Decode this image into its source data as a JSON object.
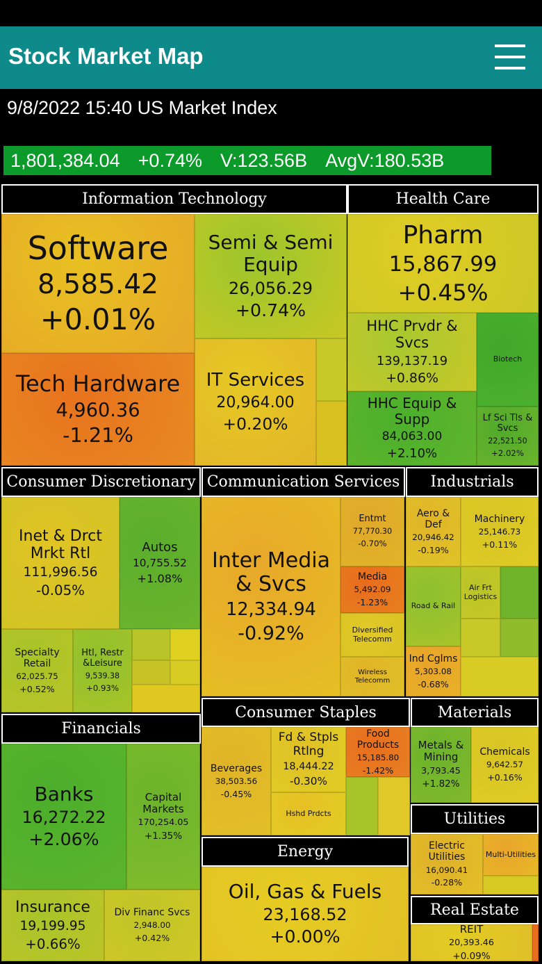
{
  "header": {
    "title": "Stock Market Map"
  },
  "index": {
    "title": "9/8/2022 15:40 US Market Index",
    "value": "1,801,384.04",
    "change": "+0.74%",
    "volume": "V:123.56B",
    "avg_volume": "AvgV:180.53B"
  },
  "sectors": [
    {
      "name": "Information Technology",
      "industries": [
        {
          "label": "Software",
          "value": "8,585.42",
          "change": "+0.01%"
        },
        {
          "label": "Semi & Semi Equip",
          "value": "26,056.29",
          "change": "+0.74%"
        },
        {
          "label": "Tech Hardware",
          "value": "4,960.36",
          "change": "-1.21%"
        },
        {
          "label": "IT Services",
          "value": "20,964.00",
          "change": "+0.20%"
        }
      ]
    },
    {
      "name": "Health Care",
      "industries": [
        {
          "label": "Pharm",
          "value": "15,867.99",
          "change": "+0.45%"
        },
        {
          "label": "HHC Prvdr & Svcs",
          "value": "139,137.19",
          "change": "+0.86%"
        },
        {
          "label": "HHC Equip & Supp",
          "value": "84,063.00",
          "change": "+2.10%"
        },
        {
          "label": "Biotech"
        },
        {
          "label": "Lf Sci Tls & Svcs",
          "value": "22,521.50",
          "change": "+2.02%"
        }
      ]
    },
    {
      "name": "Consumer Discretionary",
      "industries": [
        {
          "label": "Inet & Drct Mrkt Rtl",
          "value": "111,996.56",
          "change": "-0.05%"
        },
        {
          "label": "Autos",
          "value": "10,755.52",
          "change": "+1.08%"
        },
        {
          "label": "Specialty Retail",
          "value": "62,025.75",
          "change": "+0.52%"
        },
        {
          "label": "Htl, Restr &Leisure",
          "value": "9,539.38",
          "change": "+0.93%"
        }
      ]
    },
    {
      "name": "Communication Services",
      "industries": [
        {
          "label": "Inter Media & Svcs",
          "value": "12,334.94",
          "change": "-0.92%"
        },
        {
          "label": "Entmt",
          "value": "77,770.30",
          "change": "-0.70%"
        },
        {
          "label": "Media",
          "value": "5,492.09",
          "change": "-1.23%"
        },
        {
          "label": "Diversified Telecomm"
        },
        {
          "label": "Wireless Telecomm"
        }
      ]
    },
    {
      "name": "Industrials",
      "industries": [
        {
          "label": "Aero & Def",
          "value": "20,946.42",
          "change": "-0.19%"
        },
        {
          "label": "Machinery",
          "value": "25,146.73",
          "change": "+0.11%"
        },
        {
          "label": "Road & Rail"
        },
        {
          "label": "Air Frt Logistics"
        },
        {
          "label": "Ind Cglms",
          "value": "5,303.08",
          "change": "-0.68%"
        }
      ]
    },
    {
      "name": "Consumer Staples",
      "industries": [
        {
          "label": "Beverages",
          "value": "38,503.56",
          "change": "-0.45%"
        },
        {
          "label": "Fd & Stpls Rtlng",
          "value": "18,444.22",
          "change": "-0.30%"
        },
        {
          "label": "Food Products",
          "value": "15,185.80",
          "change": "-1.42%"
        },
        {
          "label": "Hshd Prdcts"
        }
      ]
    },
    {
      "name": "Materials",
      "industries": [
        {
          "label": "Metals & Mining",
          "value": "3,793.45",
          "change": "+1.82%"
        },
        {
          "label": "Chemicals",
          "value": "9,642.57",
          "change": "+0.16%"
        }
      ]
    },
    {
      "name": "Utilities",
      "industries": [
        {
          "label": "Electric Utilities",
          "value": "16,090.41",
          "change": "-0.28%"
        },
        {
          "label": "Multi-Utilities"
        }
      ]
    },
    {
      "name": "Real Estate",
      "industries": [
        {
          "label": "REIT",
          "value": "20,393.46",
          "change": "+0.09%"
        }
      ]
    },
    {
      "name": "Financials",
      "industries": [
        {
          "label": "Banks",
          "value": "16,272.22",
          "change": "+2.06%"
        },
        {
          "label": "Capital Markets",
          "value": "170,254.05",
          "change": "+1.35%"
        },
        {
          "label": "Insurance",
          "value": "19,199.95",
          "change": "+0.66%"
        },
        {
          "label": "Div Financ Svcs",
          "value": "2,948.00",
          "change": "+0.42%"
        }
      ]
    },
    {
      "name": "Energy",
      "industries": [
        {
          "label": "Oil, Gas & Fuels",
          "value": "23,168.52",
          "change": "+0.00%"
        }
      ]
    }
  ]
}
